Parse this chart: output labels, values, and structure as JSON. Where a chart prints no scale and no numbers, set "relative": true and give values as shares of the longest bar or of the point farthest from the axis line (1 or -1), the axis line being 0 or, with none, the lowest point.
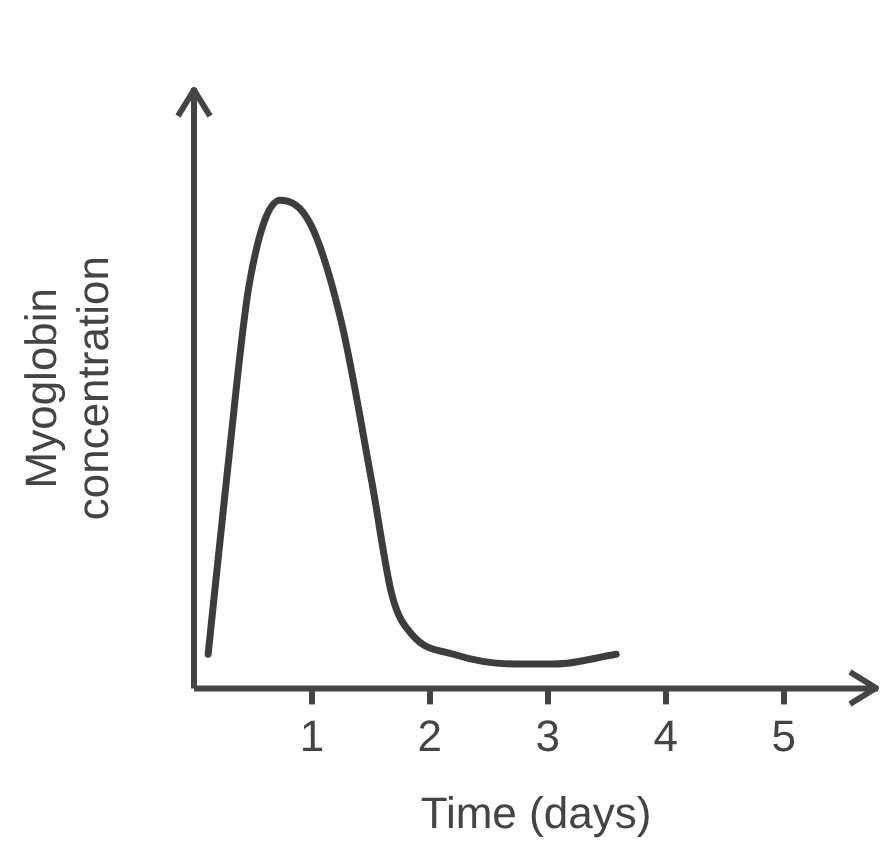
{
  "chart_data": {
    "type": "line",
    "xlabel": "Time (days)",
    "ylabel": "Myoglobin concentration",
    "relative": true,
    "xlim": [
      0,
      5.8
    ],
    "xticks": [
      1,
      2,
      3,
      4,
      5
    ],
    "tick_labels": "x",
    "grid": false,
    "legend": false,
    "marker": "none",
    "line_style": "solid",
    "series": [
      {
        "color": "#3d3d3d",
        "x": [
          0.12,
          0.29,
          0.47,
          0.73,
          0.99,
          1.25,
          1.51,
          1.68,
          1.85,
          2.2,
          2.72,
          3.06,
          3.58
        ],
        "values": [
          0.07,
          0.46,
          0.83,
          1,
          0.95,
          0.75,
          0.42,
          0.19,
          0.11,
          0.07,
          0.05,
          0.05,
          0.07
        ]
      }
    ]
  }
}
